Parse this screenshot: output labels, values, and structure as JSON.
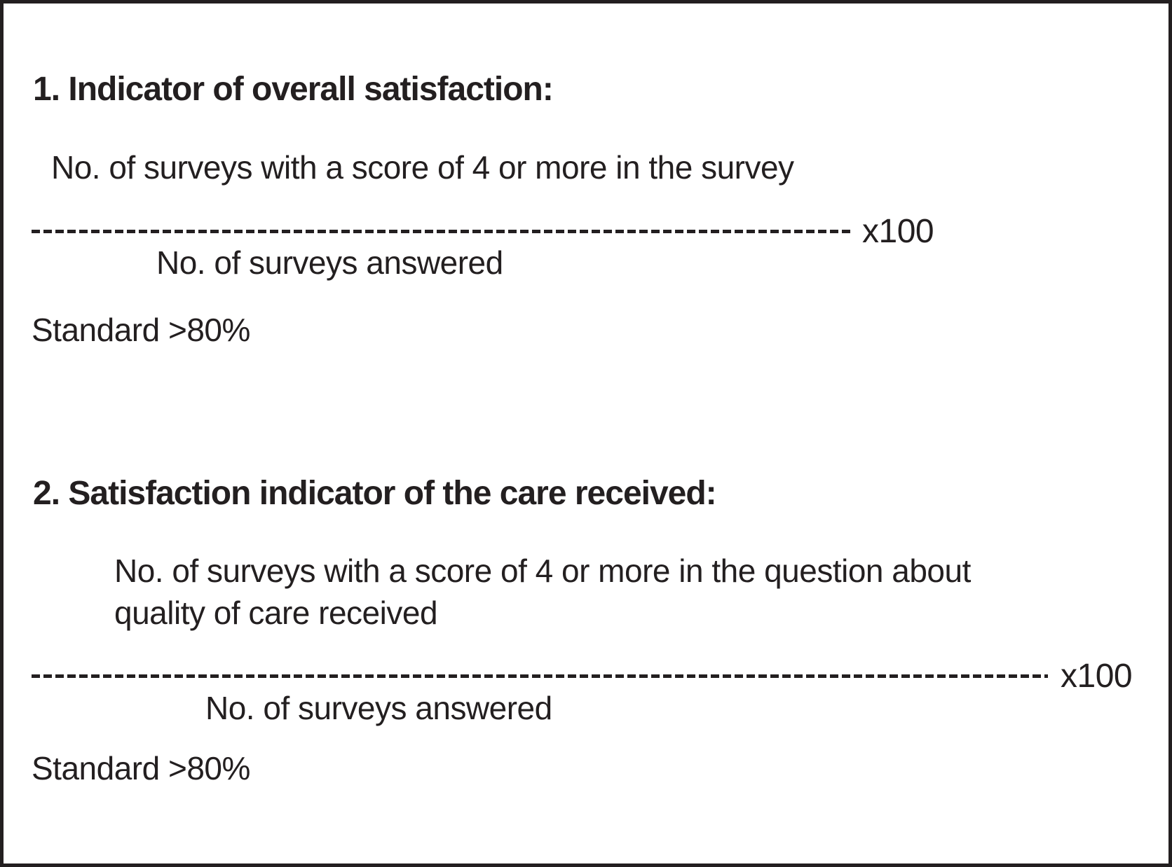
{
  "figure": {
    "colors": {
      "background": "#ffffff",
      "border": "#231f20",
      "text": "#231f20"
    },
    "indicators": [
      {
        "heading": "1. Indicator of overall satisfaction:",
        "numerator_lines": [
          "No. of surveys with a score of 4 or more in the survey"
        ],
        "multiplier": "x100",
        "denominator": "No. of surveys answered",
        "standard": "Standard >80%"
      },
      {
        "heading": "2. Satisfaction indicator of the care received:",
        "numerator_lines": [
          "No. of surveys with a score of 4 or more in the question about",
          "quality of care received"
        ],
        "multiplier": "x100",
        "denominator": "No. of surveys answered",
        "standard": "Standard >80%"
      }
    ]
  }
}
